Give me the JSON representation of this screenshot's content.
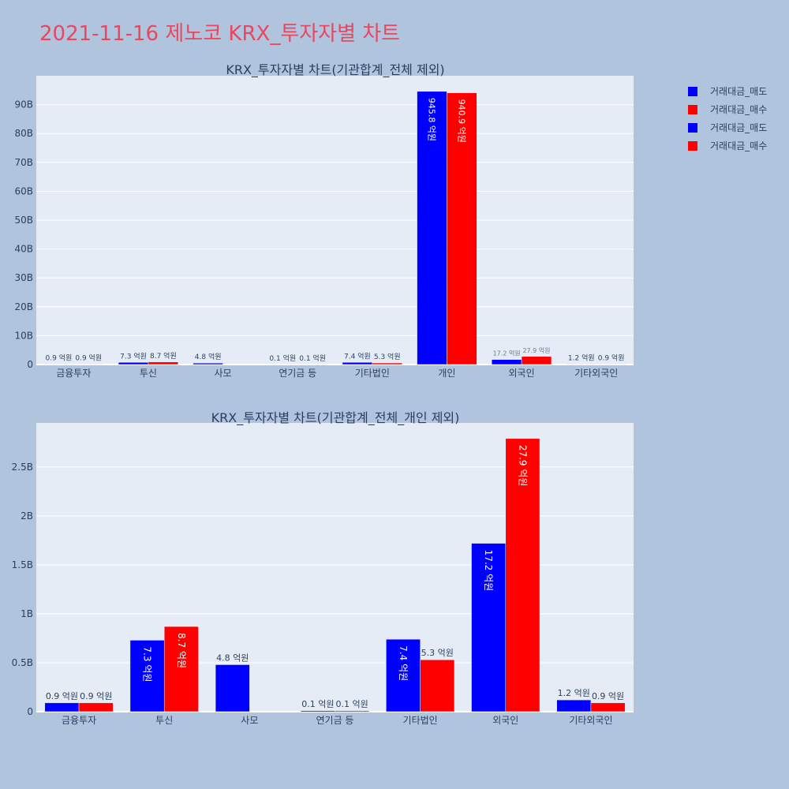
{
  "page": {
    "title": "2021-11-16 제노코 KRX_투자자별 차트"
  },
  "colors": {
    "sell": "#0000ff",
    "buy": "#ff0000"
  },
  "legend": [
    {
      "name": "거래대금_매도",
      "color": "#0000ff"
    },
    {
      "name": "거래대금_매수",
      "color": "#ff0000"
    },
    {
      "name": "거래대금_매도",
      "color": "#0000ff"
    },
    {
      "name": "거래대금_매수",
      "color": "#ff0000"
    }
  ],
  "chart_data": [
    {
      "type": "bar",
      "title": "KRX_투자자별 차트(기관합계_전체 제외)",
      "categories": [
        "금융투자",
        "투신",
        "사모",
        "연기금 등",
        "기타법인",
        "개인",
        "외국인",
        "기타외국인"
      ],
      "ylim": [
        0,
        100
      ],
      "yunit": "B",
      "yticks": [
        0,
        10,
        20,
        30,
        40,
        50,
        60,
        70,
        80,
        90
      ],
      "ytick_labels": [
        "0",
        "10B",
        "20B",
        "30B",
        "40B",
        "50B",
        "60B",
        "70B",
        "80B",
        "90B"
      ],
      "series": [
        {
          "name": "거래대금_매도",
          "values": [
            0.09,
            0.73,
            0.48,
            0.01,
            0.74,
            94.58,
            1.72,
            0.12
          ],
          "labels": [
            "0.9 억원",
            "7.3 억원",
            "4.8 억원",
            "0.1 억원",
            "7.4 억원",
            "945.8 억원",
            "17.2 억원",
            "1.2 억원"
          ]
        },
        {
          "name": "거래대금_매수",
          "values": [
            0.09,
            0.87,
            0,
            0.01,
            0.53,
            94.09,
            2.79,
            0.09
          ],
          "labels": [
            "0.9 억원",
            "8.7 억원",
            "",
            "0.1 억원",
            "5.3 억원",
            "940.9 억원",
            "27.9 억원",
            "0.9 억원"
          ]
        }
      ]
    },
    {
      "type": "bar",
      "title": "KRX_투자자별 차트(기관합계_전체_개인 제외)",
      "categories": [
        "금융투자",
        "투신",
        "사모",
        "연기금 등",
        "기타법인",
        "외국인",
        "기타외국인"
      ],
      "ylim": [
        0,
        2.95
      ],
      "yunit": "B",
      "yticks": [
        0,
        0.5,
        1,
        1.5,
        2,
        2.5
      ],
      "ytick_labels": [
        "0",
        "0.5B",
        "1B",
        "1.5B",
        "2B",
        "2.5B"
      ],
      "series": [
        {
          "name": "거래대금_매도",
          "values": [
            0.09,
            0.73,
            0.48,
            0.01,
            0.74,
            1.72,
            0.12
          ],
          "labels": [
            "0.9 억원",
            "7.3 억원",
            "4.8 억원",
            "0.1 억원",
            "7.4 억원",
            "17.2 억원",
            "1.2 억원"
          ]
        },
        {
          "name": "거래대금_매수",
          "values": [
            0.09,
            0.87,
            0,
            0.01,
            0.53,
            2.79,
            0.09
          ],
          "labels": [
            "0.9 억원",
            "8.7 억원",
            "",
            "0.1 억원",
            "5.3 억원",
            "27.9 억원",
            "0.9 억원"
          ]
        }
      ]
    }
  ]
}
